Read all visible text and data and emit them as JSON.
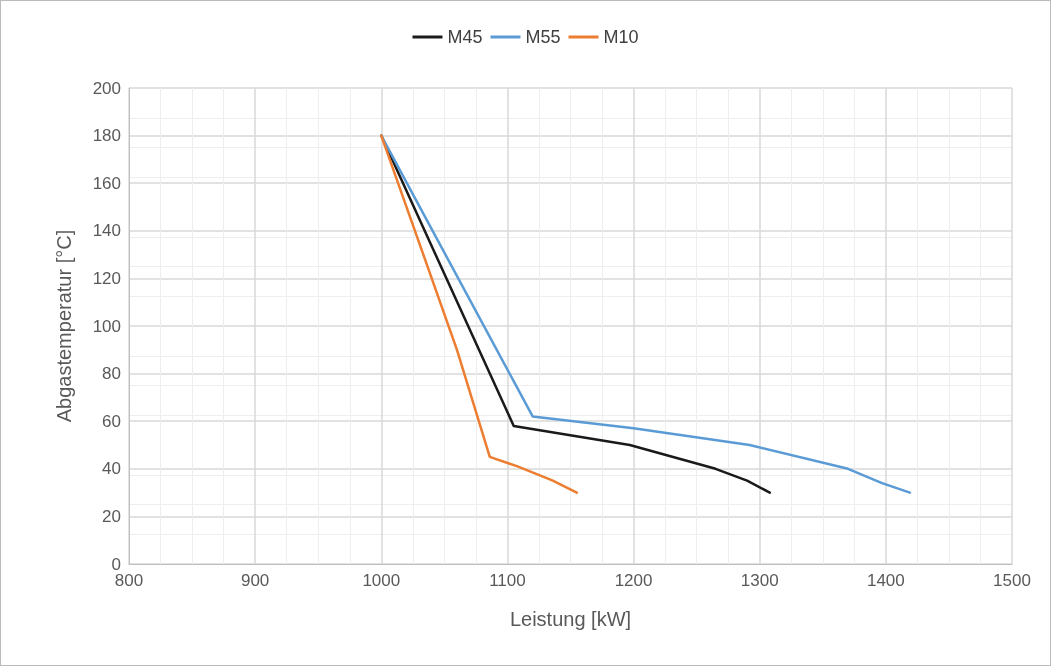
{
  "chart_data": {
    "type": "line",
    "xlabel": "Leistung [kW]",
    "ylabel": "Abgastemperatur [°C]",
    "xlim": [
      800,
      1500
    ],
    "xticks": [
      800,
      900,
      1000,
      1100,
      1200,
      1300,
      1400,
      1500
    ],
    "ylim": [
      0,
      200
    ],
    "yticks": [
      0,
      20,
      40,
      60,
      80,
      100,
      120,
      140,
      160,
      180,
      200
    ],
    "grid": true,
    "legend": "top",
    "marker": "none",
    "line_style": "solid",
    "series": [
      {
        "name": "M45",
        "color": "#1a1a1a",
        "x": [
          1000,
          1105,
          1197,
          1265,
          1290,
          1308
        ],
        "values": [
          180,
          58,
          50,
          40,
          35,
          30
        ]
      },
      {
        "name": "M55",
        "color": "#5b9bd5",
        "x": [
          1000,
          1120,
          1200,
          1292,
          1370,
          1397,
          1419
        ],
        "values": [
          180,
          62,
          57,
          50,
          40,
          34,
          30
        ]
      },
      {
        "name": "M10",
        "color": "#ed7d31",
        "x": [
          1000,
          1060,
          1086,
          1108,
          1136,
          1155
        ],
        "values": [
          180,
          90,
          45,
          41,
          35,
          30
        ]
      }
    ]
  }
}
